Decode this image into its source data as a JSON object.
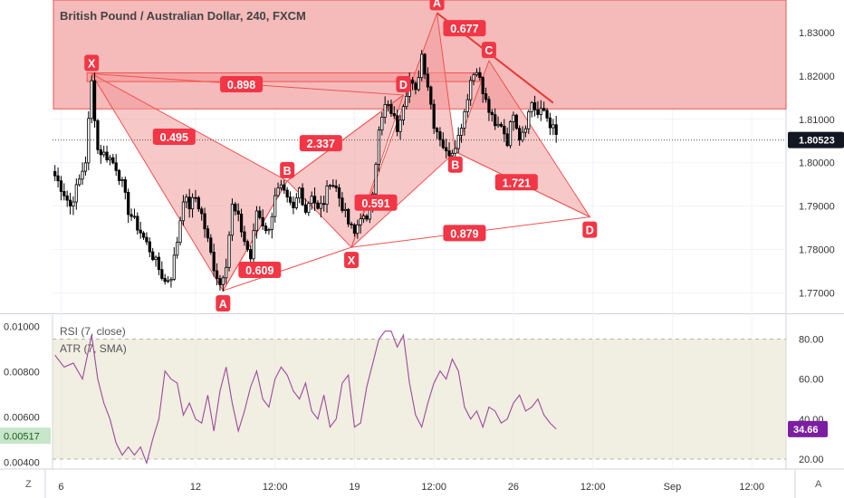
{
  "header": {
    "title": "British Pound / Australian Dollar, 240, FXCM"
  },
  "indicators": {
    "rsi_label": "RSI (7, close)",
    "atr_label": "ATR (7, SMA)"
  },
  "corner": {
    "bottom_left": "Z",
    "bottom_right": "A"
  },
  "colors": {
    "bull": "#ffffff",
    "bear": "#000000",
    "wick": "#000000",
    "pattern_stroke": "#ef5350",
    "pattern_fill": "#f19a9a",
    "zone_fill": "#f4b6b6",
    "label_bg": "#f23645",
    "rsi_line": "#9c4a9c",
    "rsi_band": "#e8e2cf",
    "price_tag": "#131722",
    "atr_tag": "#c8e6c9",
    "rsi_tag": "#7b1fa2"
  },
  "chart_data": [
    {
      "type": "candlestick",
      "title": "British Pound / Australian Dollar, 240, FXCM",
      "ylim": [
        1.7655,
        1.8375
      ],
      "y_ticks": [
        "1.83000",
        "1.82000",
        "1.81000",
        "1.80000",
        "1.79000",
        "1.78000",
        "1.77000"
      ],
      "y_tick_values": [
        1.83,
        1.82,
        1.81,
        1.8,
        1.79,
        1.78,
        1.77
      ],
      "x_ticks": [
        "6",
        "12",
        "12:00",
        "19",
        "12:00",
        "26",
        "12:00",
        "Sep",
        "12:00"
      ],
      "x_tick_bars": [
        2,
        46,
        72,
        98,
        124,
        150,
        176,
        202,
        228
      ],
      "n_bars": 240,
      "last_price": 1.80523,
      "last_price_label": "1.80523",
      "anchors": [
        [
          0,
          1.797
        ],
        [
          3,
          1.793
        ],
        [
          5,
          1.79
        ],
        [
          8,
          1.796
        ],
        [
          10,
          1.8005
        ],
        [
          12,
          1.8185
        ],
        [
          14,
          1.803
        ],
        [
          18,
          1.801
        ],
        [
          20,
          1.799
        ],
        [
          22,
          1.795
        ],
        [
          24,
          1.789
        ],
        [
          28,
          1.784
        ],
        [
          31,
          1.78
        ],
        [
          34,
          1.7755
        ],
        [
          36,
          1.7725
        ],
        [
          38,
          1.774
        ],
        [
          40,
          1.782
        ],
        [
          42,
          1.792
        ],
        [
          44,
          1.79
        ],
        [
          46,
          1.792
        ],
        [
          48,
          1.788
        ],
        [
          50,
          1.782
        ],
        [
          52,
          1.776
        ],
        [
          54,
          1.772
        ],
        [
          56,
          1.777
        ],
        [
          58,
          1.79
        ],
        [
          60,
          1.787
        ],
        [
          62,
          1.782
        ],
        [
          64,
          1.778
        ],
        [
          66,
          1.789
        ],
        [
          68,
          1.786
        ],
        [
          70,
          1.784
        ],
        [
          72,
          1.793
        ],
        [
          74,
          1.794
        ],
        [
          76,
          1.791
        ],
        [
          78,
          1.789
        ],
        [
          80,
          1.794
        ],
        [
          82,
          1.789
        ],
        [
          84,
          1.793
        ],
        [
          86,
          1.789
        ],
        [
          88,
          1.791
        ],
        [
          90,
          1.796
        ],
        [
          92,
          1.794
        ],
        [
          94,
          1.79
        ],
        [
          96,
          1.786
        ],
        [
          98,
          1.7835
        ],
        [
          100,
          1.788
        ],
        [
          102,
          1.786
        ],
        [
          104,
          1.794
        ],
        [
          106,
          1.807
        ],
        [
          108,
          1.813
        ],
        [
          110,
          1.812
        ],
        [
          112,
          1.808
        ],
        [
          114,
          1.814
        ],
        [
          116,
          1.819
        ],
        [
          118,
          1.816
        ],
        [
          120,
          1.825
        ],
        [
          122,
          1.818
        ],
        [
          124,
          1.809
        ],
        [
          126,
          1.806
        ],
        [
          128,
          1.802
        ],
        [
          130,
          1.803
        ],
        [
          132,
          1.806
        ],
        [
          134,
          1.812
        ],
        [
          136,
          1.819
        ],
        [
          138,
          1.822
        ],
        [
          140,
          1.816
        ],
        [
          142,
          1.812
        ],
        [
          144,
          1.808
        ],
        [
          146,
          1.809
        ],
        [
          148,
          1.805
        ],
        [
          150,
          1.812
        ],
        [
          152,
          1.806
        ],
        [
          154,
          1.809
        ],
        [
          156,
          1.814
        ],
        [
          158,
          1.811
        ],
        [
          160,
          1.812
        ],
        [
          162,
          1.809
        ],
        [
          164,
          1.8065
        ]
      ],
      "zones": [
        {
          "y_top": 1.8375,
          "y_bottom": 1.8124,
          "bar_from": 0,
          "bar_to": 240
        },
        {
          "y_top": 1.8207,
          "y_bottom": 1.8187,
          "bar_from": 11,
          "bar_to": 139
        }
      ],
      "pattern_points": [
        {
          "name": "X",
          "bar": 12,
          "price": 1.8205,
          "label_pos": "above"
        },
        {
          "name": "A",
          "bar": 55,
          "price": 1.7705,
          "label_pos": "below"
        },
        {
          "name": "B",
          "bar": 76,
          "price": 1.7958,
          "label_pos": "above"
        },
        {
          "name": "X",
          "bar": 97,
          "price": 1.7805,
          "label_pos": "below"
        },
        {
          "name": "D",
          "bar": 114,
          "price": 1.8156,
          "label_pos": "above"
        },
        {
          "name": "A",
          "bar": 125,
          "price": 1.8345,
          "label_pos": "above"
        },
        {
          "name": "B",
          "bar": 131,
          "price": 1.8025,
          "label_pos": "below"
        },
        {
          "name": "C",
          "bar": 142,
          "price": 1.8235,
          "label_pos": "above"
        },
        {
          "name": "D",
          "bar": 175,
          "price": 1.7875,
          "label_pos": "below"
        }
      ],
      "pattern_triangles": [
        [
          [
            12,
            1.8205
          ],
          [
            55,
            1.7705
          ],
          [
            76,
            1.7958
          ]
        ],
        [
          [
            76,
            1.7958
          ],
          [
            97,
            1.7805
          ],
          [
            114,
            1.8156
          ]
        ],
        [
          [
            97,
            1.7805
          ],
          [
            125,
            1.8345
          ],
          [
            131,
            1.8025
          ]
        ],
        [
          [
            131,
            1.8025
          ],
          [
            142,
            1.8235
          ],
          [
            175,
            1.7875
          ]
        ]
      ],
      "pattern_lines": [
        [
          [
            12,
            1.8205
          ],
          [
            114,
            1.8156
          ]
        ],
        [
          [
            55,
            1.7705
          ],
          [
            76,
            1.7958
          ]
        ],
        [
          [
            55,
            1.7705
          ],
          [
            97,
            1.7805
          ]
        ],
        [
          [
            76,
            1.7958
          ],
          [
            114,
            1.8156
          ]
        ],
        [
          [
            97,
            1.7805
          ],
          [
            175,
            1.7875
          ]
        ],
        [
          [
            131,
            1.8025
          ],
          [
            175,
            1.7875
          ]
        ]
      ],
      "trend_lines": [
        [
          [
            125,
            1.8345
          ],
          [
            163,
            1.8138
          ]
        ]
      ],
      "ratio_labels": [
        {
          "text": "0.898",
          "bar": 61,
          "price": 1.8181
        },
        {
          "text": "0.495",
          "bar": 39,
          "price": 1.806
        },
        {
          "text": "2.337",
          "bar": 87,
          "price": 1.8045
        },
        {
          "text": "0.609",
          "bar": 67,
          "price": 1.7753
        },
        {
          "text": "0.591",
          "bar": 105,
          "price": 1.7908
        },
        {
          "text": "0.677",
          "bar": 134,
          "price": 1.831
        },
        {
          "text": "1.721",
          "bar": 151,
          "price": 1.7955
        },
        {
          "text": "0.879",
          "bar": 134,
          "price": 1.7838
        }
      ]
    },
    {
      "type": "line",
      "title": "RSI (7, close)",
      "secondary_title": "ATR (7, SMA)",
      "ylim": [
        15,
        92
      ],
      "left_ylim": [
        0.0037,
        0.0105
      ],
      "right_ticks": [
        "80.00",
        "60.00",
        "40.00",
        "20.00"
      ],
      "right_tick_values": [
        80,
        60,
        40,
        20
      ],
      "left_ticks": [
        "0.01000",
        "0.00800",
        "0.00600",
        "0.00400"
      ],
      "left_tick_values": [
        0.01,
        0.008,
        0.006,
        0.004
      ],
      "band": [
        20,
        80
      ],
      "last_rsi_label": "34.66",
      "atr_value_label": "0.00517",
      "atr_value": 0.00517,
      "x": [
        0,
        3,
        6,
        9,
        12,
        14,
        16,
        18,
        20,
        22,
        24,
        26,
        28,
        30,
        32,
        34,
        36,
        38,
        40,
        42,
        44,
        46,
        48,
        50,
        52,
        54,
        56,
        58,
        60,
        62,
        64,
        66,
        68,
        70,
        72,
        74,
        76,
        78,
        80,
        82,
        84,
        86,
        88,
        90,
        92,
        94,
        96,
        98,
        100,
        102,
        104,
        106,
        108,
        110,
        112,
        114,
        116,
        118,
        120,
        122,
        124,
        126,
        128,
        130,
        132,
        134,
        136,
        138,
        140,
        142,
        144,
        146,
        148,
        150,
        152,
        154,
        156,
        158,
        160,
        162,
        164
      ],
      "values": [
        72,
        66,
        68,
        60,
        82,
        60,
        48,
        40,
        28,
        22,
        26,
        22,
        26,
        18,
        30,
        40,
        64,
        60,
        58,
        42,
        48,
        40,
        38,
        52,
        34,
        54,
        66,
        48,
        34,
        44,
        56,
        64,
        50,
        46,
        60,
        66,
        62,
        54,
        50,
        58,
        44,
        40,
        52,
        36,
        40,
        58,
        62,
        36,
        38,
        56,
        68,
        80,
        84,
        84,
        76,
        82,
        58,
        42,
        36,
        48,
        58,
        64,
        60,
        70,
        64,
        46,
        40,
        44,
        36,
        46,
        44,
        38,
        40,
        48,
        52,
        44,
        46,
        50,
        42,
        38,
        35
      ]
    }
  ]
}
